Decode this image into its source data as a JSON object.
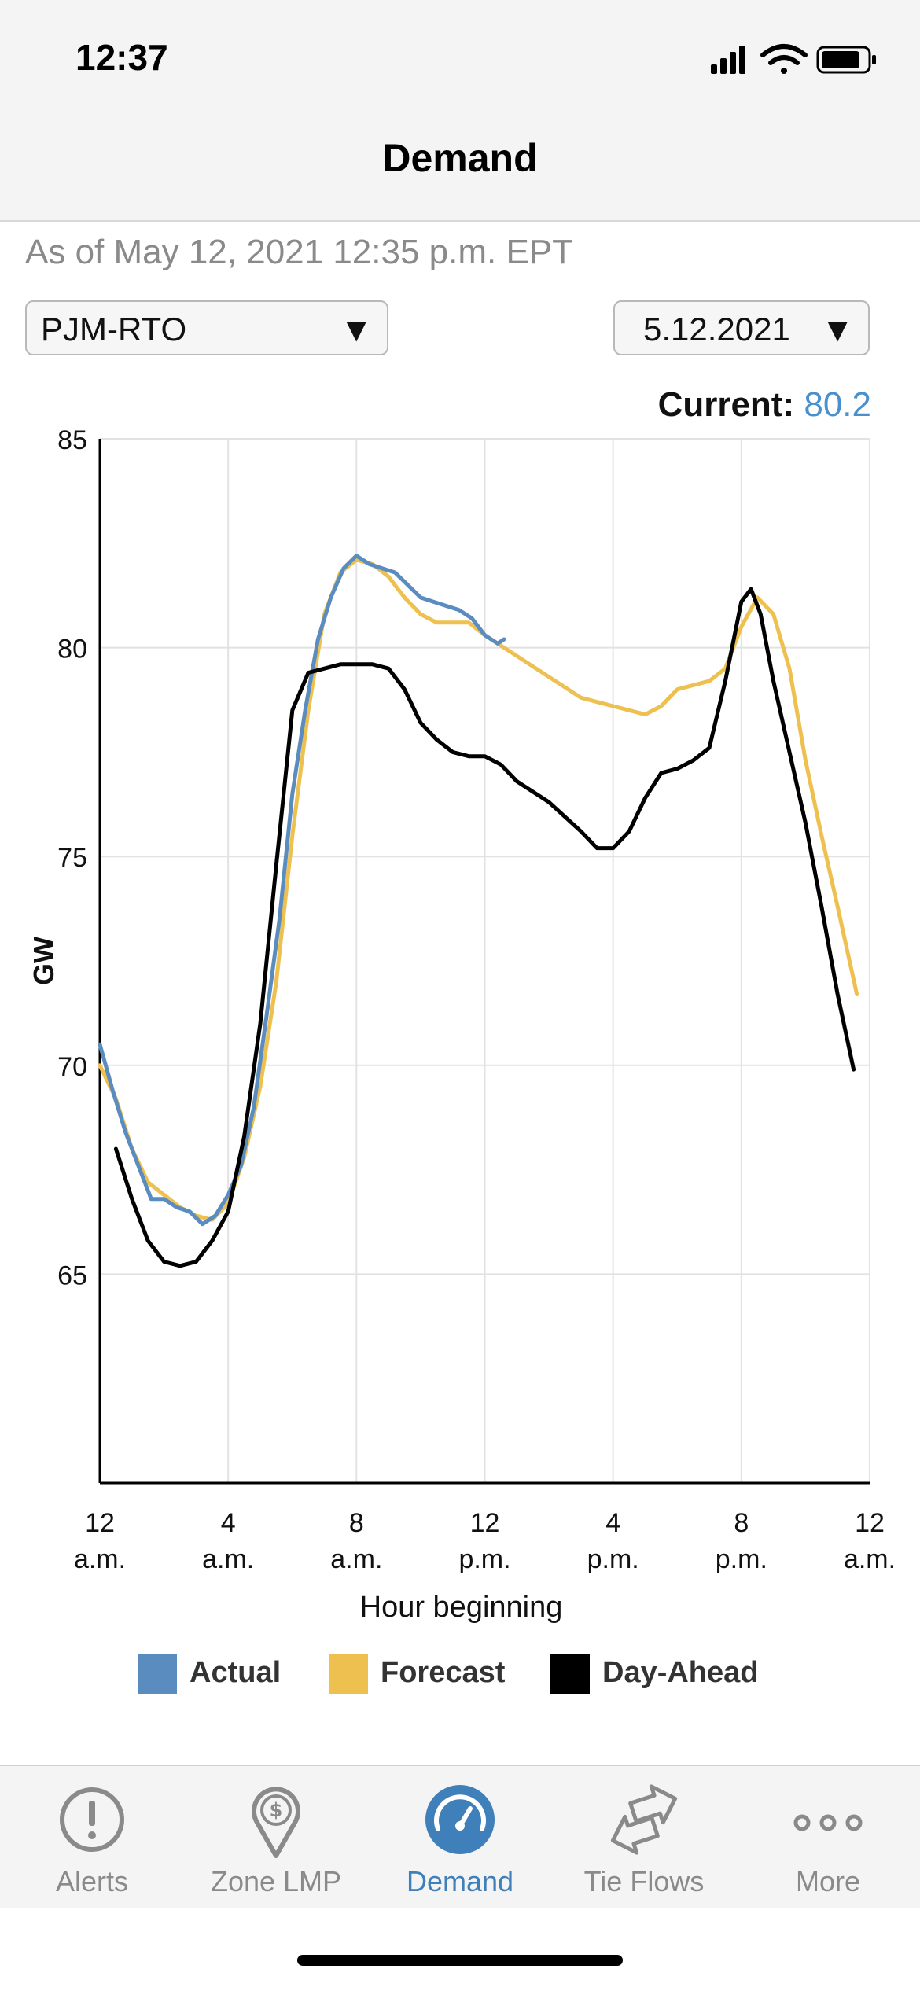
{
  "status": {
    "time": "12:37"
  },
  "header": {
    "title": "Demand"
  },
  "as_of": "As of May 12, 2021 12:35 p.m. EPT",
  "region_select": {
    "value": "PJM-RTO",
    "arrow": "▼"
  },
  "date_select": {
    "value": "5.12.2021",
    "arrow": "▼"
  },
  "current": {
    "label": "Current:",
    "value": "80.2"
  },
  "chart_data": {
    "type": "line",
    "ylabel": "GW",
    "xlabel": "Hour beginning",
    "ylim": [
      60,
      85
    ],
    "xlim": [
      0,
      24
    ],
    "yticks": [
      65,
      70,
      75,
      80,
      85
    ],
    "xticks": [
      {
        "x": 0,
        "line1": "12",
        "line2": "a.m."
      },
      {
        "x": 4,
        "line1": "4",
        "line2": "a.m."
      },
      {
        "x": 8,
        "line1": "8",
        "line2": "a.m."
      },
      {
        "x": 12,
        "line1": "12",
        "line2": "p.m."
      },
      {
        "x": 16,
        "line1": "4",
        "line2": "p.m."
      },
      {
        "x": 20,
        "line1": "8",
        "line2": "p.m."
      },
      {
        "x": 24,
        "line1": "12",
        "line2": "a.m."
      }
    ],
    "grid": true,
    "legend_position": "bottom",
    "series": [
      {
        "name": "Actual",
        "color": "#5a8cc0",
        "points": [
          [
            0,
            70.5
          ],
          [
            0.4,
            69.4
          ],
          [
            0.8,
            68.4
          ],
          [
            1.2,
            67.6
          ],
          [
            1.6,
            66.8
          ],
          [
            2.0,
            66.8
          ],
          [
            2.4,
            66.6
          ],
          [
            2.8,
            66.5
          ],
          [
            3.2,
            66.2
          ],
          [
            3.6,
            66.4
          ],
          [
            4.0,
            66.9
          ],
          [
            4.4,
            67.6
          ],
          [
            4.8,
            69.0
          ],
          [
            5.2,
            71.2
          ],
          [
            5.6,
            73.5
          ],
          [
            6.0,
            76.5
          ],
          [
            6.4,
            78.5
          ],
          [
            6.8,
            80.2
          ],
          [
            7.2,
            81.2
          ],
          [
            7.6,
            81.9
          ],
          [
            8.0,
            82.2
          ],
          [
            8.4,
            82.0
          ],
          [
            8.8,
            81.9
          ],
          [
            9.2,
            81.8
          ],
          [
            9.6,
            81.5
          ],
          [
            10.0,
            81.2
          ],
          [
            10.4,
            81.1
          ],
          [
            10.8,
            81.0
          ],
          [
            11.2,
            80.9
          ],
          [
            11.6,
            80.7
          ],
          [
            12.0,
            80.3
          ],
          [
            12.4,
            80.1
          ],
          [
            12.6,
            80.2
          ]
        ]
      },
      {
        "name": "Forecast",
        "color": "#eec04f",
        "points": [
          [
            0,
            70.0
          ],
          [
            0.5,
            69.2
          ],
          [
            1.0,
            68.0
          ],
          [
            1.5,
            67.2
          ],
          [
            2.0,
            66.9
          ],
          [
            2.5,
            66.6
          ],
          [
            3.0,
            66.4
          ],
          [
            3.5,
            66.3
          ],
          [
            4.0,
            66.7
          ],
          [
            4.5,
            67.8
          ],
          [
            5.0,
            69.5
          ],
          [
            5.5,
            72.0
          ],
          [
            6.0,
            75.5
          ],
          [
            6.5,
            78.5
          ],
          [
            7.0,
            80.8
          ],
          [
            7.5,
            81.8
          ],
          [
            8.0,
            82.1
          ],
          [
            8.5,
            82.0
          ],
          [
            9.0,
            81.7
          ],
          [
            9.5,
            81.2
          ],
          [
            10.0,
            80.8
          ],
          [
            10.5,
            80.6
          ],
          [
            11.0,
            80.6
          ],
          [
            11.5,
            80.6
          ],
          [
            12.0,
            80.3
          ],
          [
            13.0,
            79.8
          ],
          [
            14.0,
            79.3
          ],
          [
            15.0,
            78.8
          ],
          [
            16.0,
            78.6
          ],
          [
            17.0,
            78.4
          ],
          [
            17.5,
            78.6
          ],
          [
            18.0,
            79.0
          ],
          [
            19.0,
            79.2
          ],
          [
            19.5,
            79.5
          ],
          [
            20.0,
            80.5
          ],
          [
            20.5,
            81.2
          ],
          [
            21.0,
            80.8
          ],
          [
            21.5,
            79.5
          ],
          [
            22.0,
            77.3
          ],
          [
            22.5,
            75.5
          ],
          [
            23.0,
            73.8
          ],
          [
            23.6,
            71.7
          ]
        ]
      },
      {
        "name": "Day-Ahead",
        "color": "#000000",
        "points": [
          [
            0.5,
            68.0
          ],
          [
            1.0,
            66.8
          ],
          [
            1.5,
            65.8
          ],
          [
            2.0,
            65.3
          ],
          [
            2.5,
            65.2
          ],
          [
            3.0,
            65.3
          ],
          [
            3.5,
            65.8
          ],
          [
            4.0,
            66.5
          ],
          [
            4.5,
            68.3
          ],
          [
            5.0,
            71.0
          ],
          [
            5.5,
            74.8
          ],
          [
            6.0,
            78.5
          ],
          [
            6.5,
            79.4
          ],
          [
            7.0,
            79.5
          ],
          [
            7.5,
            79.6
          ],
          [
            8.0,
            79.6
          ],
          [
            8.5,
            79.6
          ],
          [
            9.0,
            79.5
          ],
          [
            9.5,
            79.0
          ],
          [
            10.0,
            78.2
          ],
          [
            10.5,
            77.8
          ],
          [
            11.0,
            77.5
          ],
          [
            11.5,
            77.4
          ],
          [
            12.0,
            77.4
          ],
          [
            12.5,
            77.2
          ],
          [
            13.0,
            76.8
          ],
          [
            14.0,
            76.3
          ],
          [
            15.0,
            75.6
          ],
          [
            15.5,
            75.2
          ],
          [
            16.0,
            75.2
          ],
          [
            16.5,
            75.6
          ],
          [
            17.0,
            76.4
          ],
          [
            17.5,
            77.0
          ],
          [
            18.0,
            77.1
          ],
          [
            18.5,
            77.3
          ],
          [
            19.0,
            77.6
          ],
          [
            19.5,
            79.2
          ],
          [
            20.0,
            81.1
          ],
          [
            20.3,
            81.4
          ],
          [
            20.6,
            80.8
          ],
          [
            21.0,
            79.2
          ],
          [
            21.5,
            77.5
          ],
          [
            22.0,
            75.8
          ],
          [
            22.5,
            73.8
          ],
          [
            23.0,
            71.7
          ],
          [
            23.5,
            69.9
          ]
        ]
      }
    ]
  },
  "legend": [
    {
      "label": "Actual",
      "color": "#5a8cc0"
    },
    {
      "label": "Forecast",
      "color": "#eec04f"
    },
    {
      "label": "Day-Ahead",
      "color": "#000000"
    }
  ],
  "tabs": [
    {
      "label": "Alerts",
      "icon": "alert-icon"
    },
    {
      "label": "Zone LMP",
      "icon": "zone-lmp-icon"
    },
    {
      "label": "Demand",
      "icon": "demand-gauge-icon",
      "active": true
    },
    {
      "label": "Tie Flows",
      "icon": "tie-flows-icon"
    },
    {
      "label": "More",
      "icon": "more-icon"
    }
  ]
}
